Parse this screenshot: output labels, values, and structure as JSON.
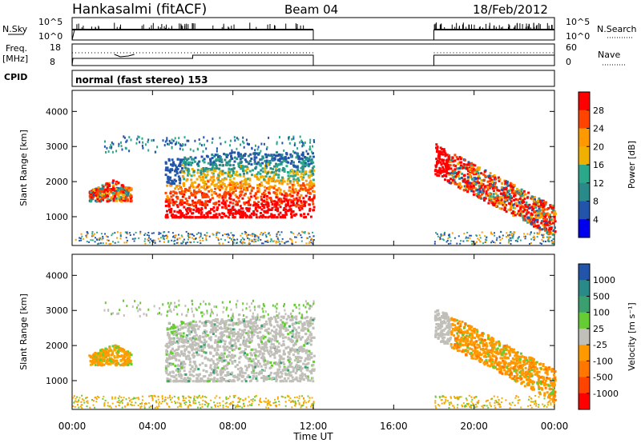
{
  "header": {
    "station": "Hankasalmi (fitACF)",
    "beam": "Beam 04",
    "date": "18/Feb/2012",
    "cpid_label": "CPID",
    "cpid_text": "normal (fast stereo) 153"
  },
  "aux_panels": {
    "nsky_label": "N.Sky",
    "nsky_ticks": [
      "10^5",
      "10^0"
    ],
    "nsearch_label": "N.Search",
    "nsearch_ticks": [
      "10^5",
      "10^0"
    ],
    "freq_label": "Freq.",
    "freq_unit": "[MHz]",
    "freq_ticks": [
      "18",
      "8"
    ],
    "nave_label": "Nave",
    "nave_ticks": [
      "60",
      "0"
    ]
  },
  "colors": {
    "red": "#ff0000",
    "orange_red": "#ff5000",
    "orange": "#ff9900",
    "yellow_orange": "#f0b000",
    "green_dark": "#3a9a70",
    "green": "#66cc33",
    "grey": "#c0bfb8",
    "blue": "#2255aa",
    "deep_blue": "#0000ee",
    "teal": "#2a8a8a"
  },
  "chart_data": [
    {
      "type": "heatmap",
      "name": "power",
      "xlabel": "",
      "ylabel": "Slant Range [km]",
      "x_ticks": [
        "00:00",
        "04:00",
        "08:00",
        "12:00",
        "16:00",
        "20:00",
        "00:00"
      ],
      "xlim_hours": [
        0,
        24
      ],
      "ylim_km": [
        180,
        4600
      ],
      "y_ticks": [
        1000,
        2000,
        3000,
        4000
      ],
      "colorbar": {
        "label": "Power [dB]",
        "ticks": [
          "28",
          "24",
          "20",
          "16",
          "12",
          "8",
          "4"
        ],
        "colors": [
          "#ff0000",
          "#ff4400",
          "#ff9900",
          "#f0b000",
          "#2ba88a",
          "#2a8a8a",
          "#2255aa",
          "#0000ee"
        ]
      },
      "data_gaps_hours": [
        [
          12,
          18
        ]
      ]
    },
    {
      "type": "heatmap",
      "name": "velocity",
      "xlabel": "Time UT",
      "ylabel": "Slant Range [km]",
      "x_ticks": [
        "00:00",
        "04:00",
        "08:00",
        "12:00",
        "16:00",
        "20:00",
        "00:00"
      ],
      "xlim_hours": [
        0,
        24
      ],
      "ylim_km": [
        180,
        4600
      ],
      "y_ticks": [
        1000,
        2000,
        3000,
        4000
      ],
      "colorbar": {
        "label": "Velocity [m s⁻¹]",
        "ticks": [
          "1000",
          "500",
          "100",
          "25",
          "-25",
          "-100",
          "-500",
          "-1000"
        ],
        "colors": [
          "#2255aa",
          "#2a8a8a",
          "#3aa070",
          "#66cc33",
          "#c0bfb8",
          "#ff9900",
          "#ff7700",
          "#ff4400",
          "#ff0000"
        ]
      },
      "data_gaps_hours": [
        [
          12,
          18
        ]
      ]
    }
  ]
}
